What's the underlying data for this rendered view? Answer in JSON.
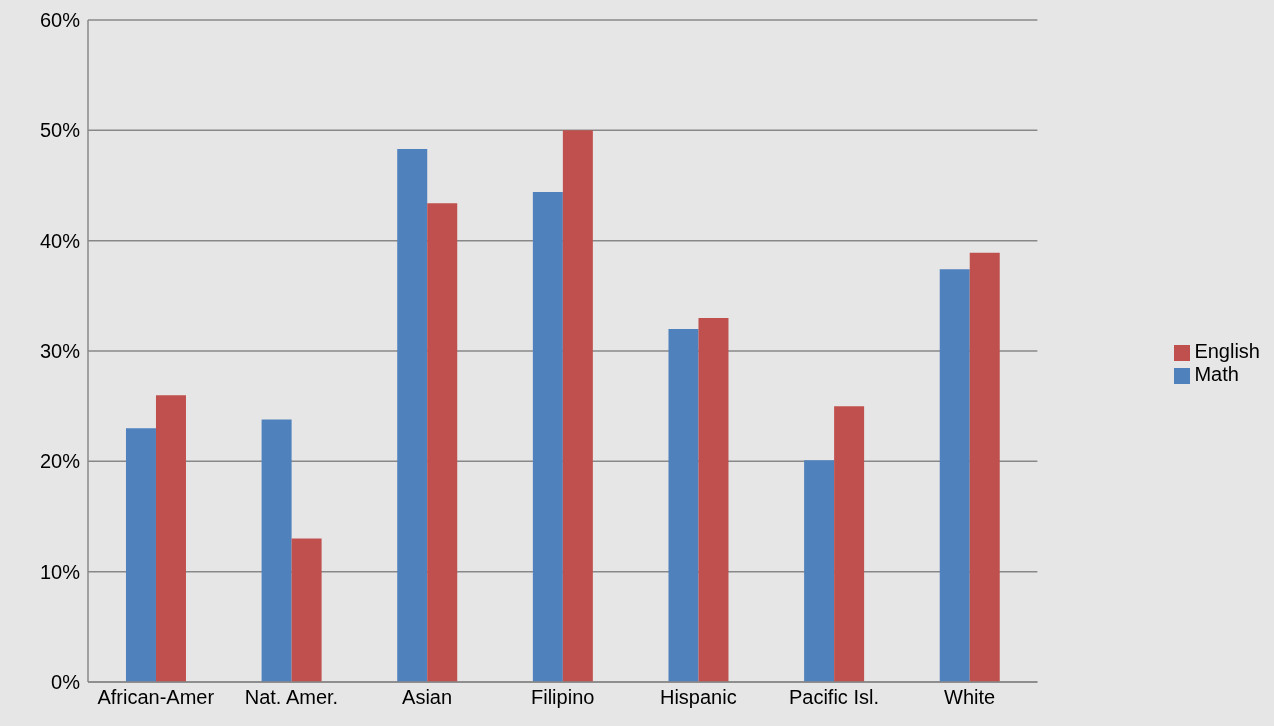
{
  "chart_data": {
    "type": "bar",
    "categories": [
      "African-Amer",
      "Nat. Amer.",
      "Asian",
      "Filipino",
      "Hispanic",
      "Pacific Isl.",
      "White"
    ],
    "series": [
      {
        "name": "Math",
        "color": "#4f81bd",
        "values": [
          23,
          23.8,
          48.3,
          44.4,
          32,
          20.1,
          37.4
        ]
      },
      {
        "name": "English",
        "color": "#c0504d",
        "values": [
          26,
          13,
          43.4,
          50,
          33,
          25,
          38.9
        ]
      }
    ],
    "ylim": [
      0,
      60
    ],
    "yticks": [
      {
        "value": 0,
        "label": "0%"
      },
      {
        "value": 10,
        "label": "10%"
      },
      {
        "value": 20,
        "label": "20%"
      },
      {
        "value": 30,
        "label": "30%"
      },
      {
        "value": 40,
        "label": "40%"
      },
      {
        "value": 50,
        "label": "50%"
      },
      {
        "value": 60,
        "label": "60%"
      }
    ],
    "grid": "y",
    "legend": "right"
  }
}
